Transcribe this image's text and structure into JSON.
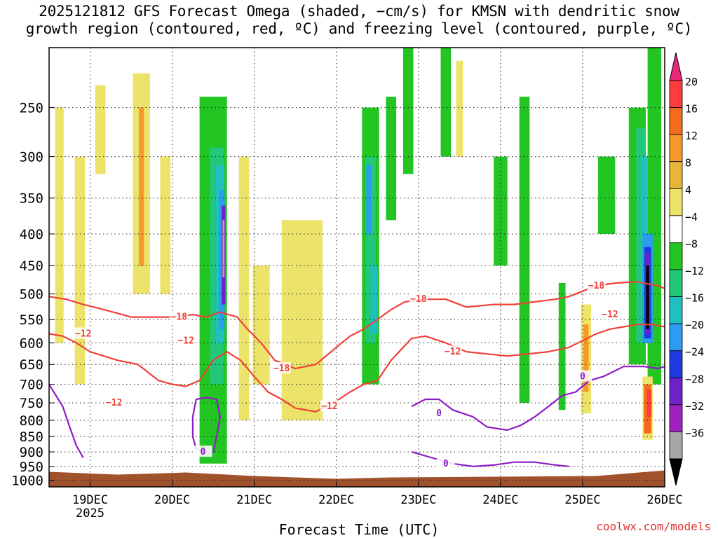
{
  "chart_data": {
    "type": "heatmap",
    "title_line1": "2025121812 GFS Forecast Omega (shaded, −cm/s) for KMSN with dendritic snow",
    "title_line2": "growth region (contoured, red, ºC) and freezing level (contoured, purple, ºC)",
    "xlabel": "Forecast Time (UTC)",
    "x_ticks": [
      {
        "label": "19DEC",
        "sub": "2025",
        "hour": 12
      },
      {
        "label": "20DEC",
        "sub": "",
        "hour": 36
      },
      {
        "label": "21DEC",
        "sub": "",
        "hour": 60
      },
      {
        "label": "22DEC",
        "sub": "",
        "hour": 84
      },
      {
        "label": "23DEC",
        "sub": "",
        "hour": 108
      },
      {
        "label": "24DEC",
        "sub": "",
        "hour": 132
      },
      {
        "label": "25DEC",
        "sub": "",
        "hour": 156
      },
      {
        "label": "26DEC",
        "sub": "",
        "hour": 180
      }
    ],
    "x_range_hours": [
      0,
      180
    ],
    "y_ticks": [
      "250",
      "300",
      "350",
      "400",
      "450",
      "500",
      "550",
      "600",
      "650",
      "700",
      "750",
      "800",
      "850",
      "900",
      "950",
      "1000"
    ],
    "y_range_hpa": [
      200,
      1025
    ],
    "y_scale": "log-pressure",
    "grid": true,
    "colorbar": {
      "labels": [
        "20",
        "16",
        "12",
        "8",
        "4",
        "−4",
        "−8",
        "−12",
        "−16",
        "−20",
        "−24",
        "−28",
        "−32",
        "−36"
      ],
      "colors": [
        "#ff3b3b",
        "#f46b1e",
        "#f59a2a",
        "#e8b53a",
        "#ece36a",
        "#ffffff",
        "#22c522",
        "#22c77a",
        "#20c0c0",
        "#2b9cf0",
        "#1e3be0",
        "#6f22c9",
        "#a21fbf",
        "#a7a7a7"
      ],
      "top_arrow_color": "#e8267a",
      "bottom_arrow_color": "#000000"
    },
    "shading_regions": [
      {
        "t": 3,
        "p0": 250,
        "p1": 600,
        "w": 2.5,
        "color": "#ece36a"
      },
      {
        "t": 9,
        "p0": 300,
        "p1": 700,
        "w": 3,
        "color": "#ece36a"
      },
      {
        "t": 15,
        "p0": 230,
        "p1": 320,
        "w": 3,
        "color": "#ece36a"
      },
      {
        "t": 27,
        "p0": 220,
        "p1": 500,
        "w": 5,
        "color": "#ece36a"
      },
      {
        "t": 27,
        "p0": 250,
        "p1": 450,
        "w": 1.5,
        "color": "#f59a2a"
      },
      {
        "t": 34,
        "p0": 300,
        "p1": 500,
        "w": 3,
        "color": "#ece36a"
      },
      {
        "t": 48,
        "p0": 240,
        "p1": 940,
        "w": 8,
        "color": "#22c522"
      },
      {
        "t": 49,
        "p0": 290,
        "p1": 700,
        "w": 4,
        "color": "#22c77a"
      },
      {
        "t": 50,
        "p0": 310,
        "p1": 600,
        "w": 2.5,
        "color": "#20c0c0"
      },
      {
        "t": 50.5,
        "p0": 340,
        "p1": 570,
        "w": 1.6,
        "color": "#2b9cf0"
      },
      {
        "t": 51,
        "p0": 360,
        "p1": 520,
        "w": 1.1,
        "color": "#6f22c9"
      },
      {
        "t": 51,
        "p0": 380,
        "p1": 470,
        "w": 0.6,
        "color": "#a7a7a7"
      },
      {
        "t": 57,
        "p0": 300,
        "p1": 800,
        "w": 3,
        "color": "#ece36a"
      },
      {
        "t": 62,
        "p0": 450,
        "p1": 700,
        "w": 5,
        "color": "#ece36a"
      },
      {
        "t": 74,
        "p0": 380,
        "p1": 800,
        "w": 12,
        "color": "#ece36a"
      },
      {
        "t": 78,
        "p0": 520,
        "p1": 650,
        "w": 3,
        "color": "#ece36a"
      },
      {
        "t": 94,
        "p0": 250,
        "p1": 700,
        "w": 5,
        "color": "#22c522"
      },
      {
        "t": 94,
        "p0": 300,
        "p1": 600,
        "w": 3,
        "color": "#22c77a"
      },
      {
        "t": 93.5,
        "p0": 310,
        "p1": 400,
        "w": 1.5,
        "color": "#2b9cf0"
      },
      {
        "t": 95,
        "p0": 450,
        "p1": 580,
        "w": 2,
        "color": "#20c0c0"
      },
      {
        "t": 100,
        "p0": 240,
        "p1": 380,
        "w": 3,
        "color": "#22c522"
      },
      {
        "t": 105,
        "p0": 200,
        "p1": 320,
        "w": 3,
        "color": "#22c522"
      },
      {
        "t": 116,
        "p0": 200,
        "p1": 300,
        "w": 3,
        "color": "#22c522"
      },
      {
        "t": 120,
        "p0": 210,
        "p1": 300,
        "w": 2,
        "color": "#ece36a"
      },
      {
        "t": 132,
        "p0": 300,
        "p1": 450,
        "w": 4,
        "color": "#22c522"
      },
      {
        "t": 139,
        "p0": 240,
        "p1": 750,
        "w": 3,
        "color": "#22c522"
      },
      {
        "t": 150,
        "p0": 480,
        "p1": 770,
        "w": 2,
        "color": "#22c522"
      },
      {
        "t": 157,
        "p0": 520,
        "p1": 780,
        "w": 3,
        "color": "#ece36a"
      },
      {
        "t": 157,
        "p0": 560,
        "p1": 720,
        "w": 1.5,
        "color": "#f59a2a"
      },
      {
        "t": 163,
        "p0": 300,
        "p1": 400,
        "w": 5,
        "color": "#22c522"
      },
      {
        "t": 172,
        "p0": 250,
        "p1": 650,
        "w": 5,
        "color": "#22c522"
      },
      {
        "t": 173,
        "p0": 270,
        "p1": 600,
        "w": 3,
        "color": "#22c77a"
      },
      {
        "t": 174,
        "p0": 300,
        "p1": 500,
        "w": 2,
        "color": "#20c0c0"
      },
      {
        "t": 177,
        "p0": 200,
        "p1": 700,
        "w": 4,
        "color": "#22c522"
      },
      {
        "t": 175,
        "p0": 400,
        "p1": 600,
        "w": 3,
        "color": "#2b9cf0"
      },
      {
        "t": 175,
        "p0": 420,
        "p1": 590,
        "w": 2,
        "color": "#1e3be0"
      },
      {
        "t": 175,
        "p0": 430,
        "p1": 580,
        "w": 1.4,
        "color": "#6f22c9"
      },
      {
        "t": 175,
        "p0": 450,
        "p1": 570,
        "w": 0.9,
        "color": "#000000"
      },
      {
        "t": 175,
        "p0": 680,
        "p1": 860,
        "w": 3,
        "color": "#ece36a"
      },
      {
        "t": 175,
        "p0": 700,
        "p1": 840,
        "w": 2.2,
        "color": "#f46b1e"
      },
      {
        "t": 175.5,
        "p0": 715,
        "p1": 790,
        "w": 1.3,
        "color": "#ff3b3b"
      }
    ],
    "contours_red": [
      {
        "label": "−18",
        "label_at": [
          0,
          0
        ],
        "points": [
          [
            0,
            505
          ],
          [
            5,
            510
          ],
          [
            10,
            520
          ],
          [
            16,
            530
          ],
          [
            24,
            545
          ],
          [
            30,
            545
          ],
          [
            36,
            545
          ],
          [
            42,
            540
          ],
          [
            46,
            545
          ],
          [
            50,
            535
          ],
          [
            55,
            545
          ],
          [
            58,
            570
          ],
          [
            62,
            600
          ],
          [
            66,
            640
          ],
          [
            72,
            660
          ],
          [
            78,
            650
          ],
          [
            84,
            610
          ],
          [
            88,
            585
          ],
          [
            92,
            570
          ],
          [
            96,
            550
          ],
          [
            100,
            530
          ],
          [
            104,
            515
          ],
          [
            110,
            510
          ],
          [
            116,
            510
          ],
          [
            122,
            525
          ],
          [
            130,
            520
          ],
          [
            136,
            520
          ],
          [
            142,
            515
          ],
          [
            148,
            510
          ],
          [
            152,
            505
          ],
          [
            156,
            495
          ],
          [
            160,
            485
          ],
          [
            166,
            480
          ],
          [
            172,
            478
          ],
          [
            178,
            485
          ],
          [
            180,
            490
          ]
        ]
      },
      {
        "label": "−18",
        "label_at": [
          38,
          545
        ],
        "points": []
      },
      {
        "label": "−18",
        "label_at": [
          68,
          660
        ],
        "points": []
      },
      {
        "label": "−18",
        "label_at": [
          108,
          510
        ],
        "points": []
      },
      {
        "label": "−18",
        "label_at": [
          160,
          485
        ],
        "points": []
      },
      {
        "label": "−12",
        "label_at": [
          0,
          0
        ],
        "points": [
          [
            0,
            580
          ],
          [
            4,
            585
          ],
          [
            8,
            600
          ],
          [
            12,
            620
          ],
          [
            16,
            630
          ],
          [
            20,
            640
          ],
          [
            26,
            650
          ],
          [
            32,
            690
          ],
          [
            36,
            700
          ],
          [
            40,
            705
          ],
          [
            44,
            690
          ],
          [
            48,
            640
          ],
          [
            52,
            620
          ],
          [
            56,
            640
          ],
          [
            60,
            680
          ],
          [
            64,
            720
          ],
          [
            68,
            740
          ],
          [
            72,
            765
          ],
          [
            78,
            775
          ],
          [
            84,
            745
          ],
          [
            88,
            720
          ],
          [
            92,
            700
          ],
          [
            96,
            690
          ],
          [
            100,
            640
          ],
          [
            106,
            590
          ],
          [
            110,
            585
          ],
          [
            116,
            600
          ],
          [
            122,
            620
          ],
          [
            128,
            625
          ],
          [
            134,
            630
          ],
          [
            140,
            625
          ],
          [
            146,
            620
          ],
          [
            152,
            610
          ],
          [
            156,
            595
          ],
          [
            160,
            580
          ],
          [
            164,
            570
          ],
          [
            168,
            565
          ],
          [
            172,
            560
          ],
          [
            176,
            560
          ],
          [
            180,
            565
          ]
        ]
      },
      {
        "label": "−12",
        "label_at": [
          10,
          580
        ],
        "points": []
      },
      {
        "label": "−12",
        "label_at": [
          40,
          595
        ],
        "points": []
      },
      {
        "label": "−12",
        "label_at": [
          118,
          620
        ],
        "points": []
      },
      {
        "label": "−12",
        "label_at": [
          164,
          540
        ],
        "points": []
      },
      {
        "label": "−12",
        "label_at": [
          19,
          750
        ],
        "points": []
      },
      {
        "label": "−12",
        "label_at": [
          82,
          760
        ],
        "points": []
      }
    ],
    "contours_purple": [
      {
        "label": "0",
        "label_at": [
          45,
          900
        ],
        "points": [
          [
            43,
            740
          ],
          [
            46,
            735
          ],
          [
            49,
            740
          ],
          [
            50,
            790
          ],
          [
            49,
            850
          ],
          [
            48,
            900
          ],
          [
            46,
            905
          ],
          [
            43,
            890
          ],
          [
            42,
            850
          ],
          [
            42,
            790
          ],
          [
            43,
            740
          ]
        ]
      },
      {
        "label": "0",
        "label_at": [
          114,
          780
        ],
        "points": [
          [
            106,
            760
          ],
          [
            110,
            740
          ],
          [
            114,
            740
          ],
          [
            118,
            770
          ],
          [
            124,
            790
          ],
          [
            128,
            820
          ],
          [
            134,
            830
          ],
          [
            138,
            815
          ],
          [
            142,
            790
          ],
          [
            146,
            760
          ],
          [
            150,
            730
          ],
          [
            154,
            720
          ],
          [
            158,
            690
          ],
          [
            162,
            680
          ],
          [
            168,
            655
          ],
          [
            174,
            655
          ],
          [
            178,
            660
          ],
          [
            180,
            655
          ]
        ]
      },
      {
        "label": "0",
        "label_at": [
          156,
          680
        ],
        "points": []
      },
      {
        "label": "0",
        "label_at": [
          116,
          940
        ],
        "points": [
          [
            106,
            900
          ],
          [
            112,
            920
          ],
          [
            118,
            940
          ],
          [
            124,
            950
          ],
          [
            130,
            945
          ],
          [
            136,
            935
          ],
          [
            142,
            935
          ],
          [
            148,
            945
          ],
          [
            152,
            950
          ]
        ]
      },
      {
        "label": "",
        "label_at": [
          0,
          0
        ],
        "points": [
          [
            0,
            700
          ],
          [
            4,
            760
          ],
          [
            6,
            820
          ],
          [
            8,
            880
          ],
          [
            10,
            920
          ]
        ]
      }
    ],
    "terrain_color": "#a0522d"
  },
  "credit": "coolwx.com/models"
}
